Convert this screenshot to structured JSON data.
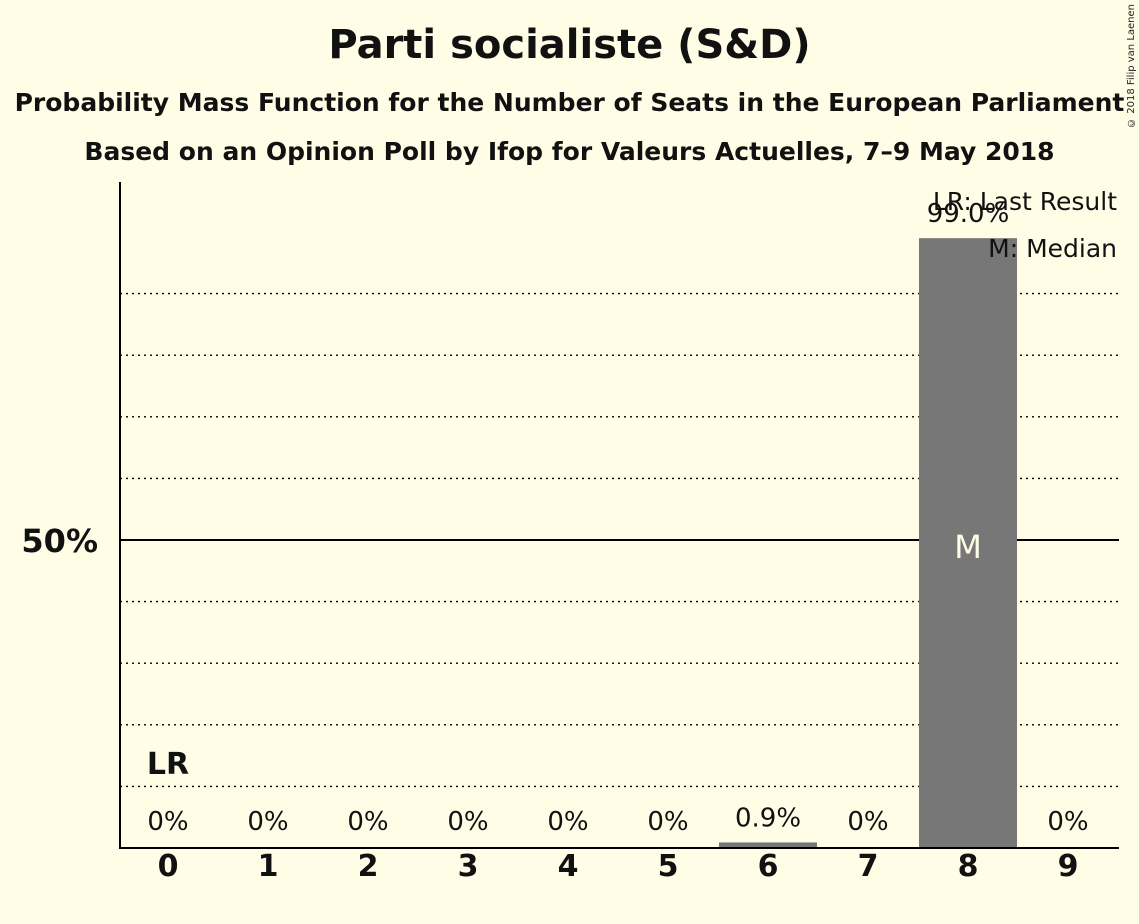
{
  "header": {
    "title": "Parti socialiste (S&D)",
    "subtitle": "Probability Mass Function for the Number of Seats in the European Parliament",
    "source": "Based on an Opinion Poll by Ifop for Valeurs Actuelles, 7–9 May 2018"
  },
  "copyright": "© 2018 Filip van Laenen",
  "chart_data": {
    "type": "bar",
    "categories": [
      "0",
      "1",
      "2",
      "3",
      "4",
      "5",
      "6",
      "7",
      "8",
      "9"
    ],
    "values": [
      0,
      0,
      0,
      0,
      0,
      0,
      0.9,
      0,
      99.0,
      0
    ],
    "value_labels": [
      "0%",
      "0%",
      "0%",
      "0%",
      "0%",
      "0%",
      "0.9%",
      "0%",
      "99.0%",
      "0%"
    ],
    "ylim": [
      0,
      100
    ],
    "y_tick_label": "50%",
    "y_tick_value": 50,
    "gridlines": [
      10,
      20,
      30,
      40,
      60,
      70,
      80,
      90
    ],
    "last_result_index": 0,
    "last_result_label": "LR",
    "median_index": 8,
    "median_label": "M",
    "legend": [
      "LR: Last Result",
      "M: Median"
    ],
    "legend_position": "top-right",
    "colors": {
      "background": "#FFFDE6",
      "bar": "#777777",
      "median_text": "#FFFDE6",
      "axis": "#000000",
      "grid": "#000000"
    }
  }
}
